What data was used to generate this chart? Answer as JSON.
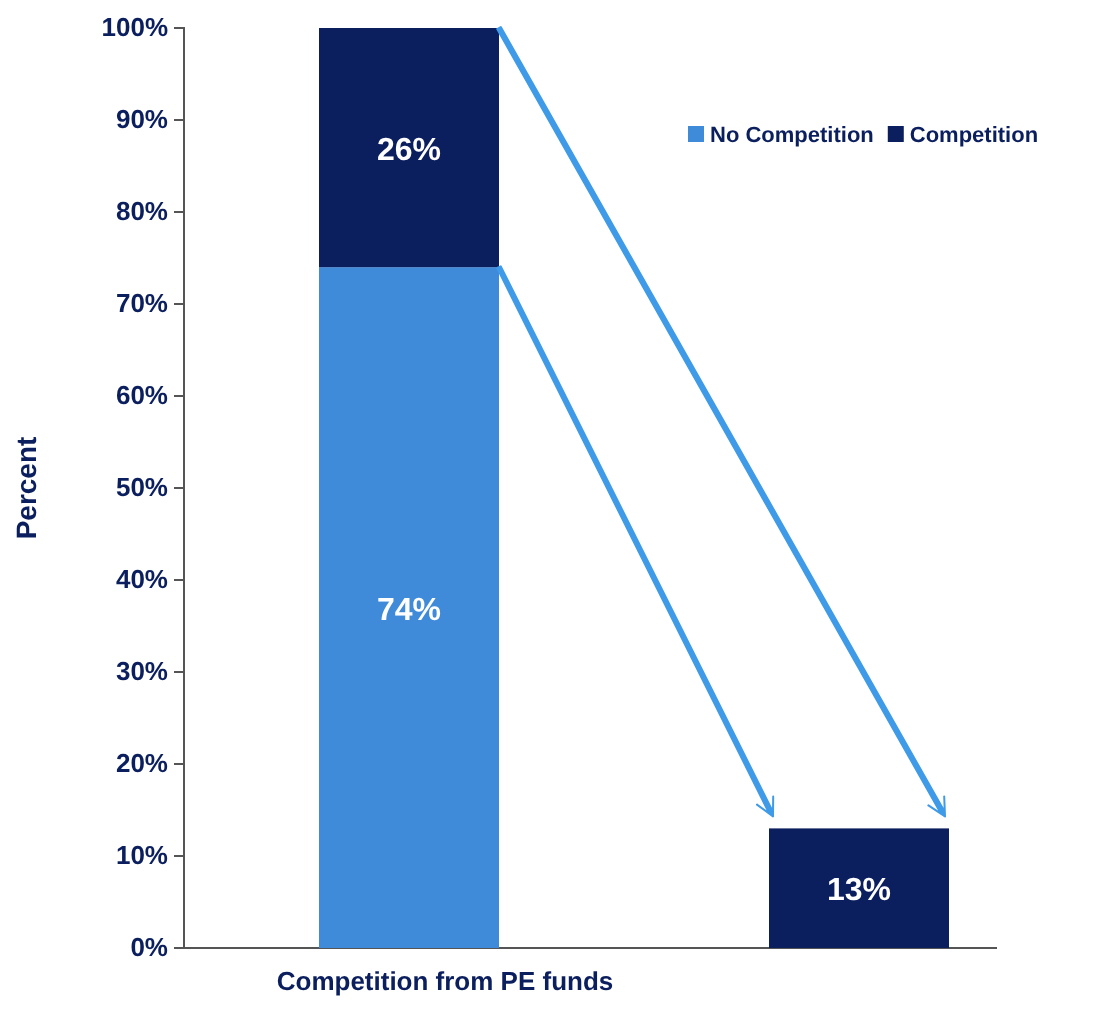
{
  "chart_data": {
    "type": "bar",
    "stacked": true,
    "ylabel": "Percent",
    "categories": [
      "Competition from PE funds",
      null
    ],
    "series": [
      {
        "name": "No Competition",
        "color": "#3f8bd9",
        "values": [
          74,
          null
        ],
        "value_labels": [
          "74%",
          null
        ]
      },
      {
        "name": "Competition",
        "color": "#0b1f5e",
        "values": [
          26,
          13
        ],
        "value_labels": [
          "26%",
          "13%"
        ]
      }
    ],
    "ylim": [
      0,
      100
    ],
    "yticks": [
      {
        "value": 0,
        "label": "0%"
      },
      {
        "value": 10,
        "label": "10%"
      },
      {
        "value": 20,
        "label": "20%"
      },
      {
        "value": 30,
        "label": "30%"
      },
      {
        "value": 40,
        "label": "40%"
      },
      {
        "value": 50,
        "label": "50%"
      },
      {
        "value": 60,
        "label": "60%"
      },
      {
        "value": 70,
        "label": "70%"
      },
      {
        "value": 80,
        "label": "80%"
      },
      {
        "value": 90,
        "label": "90%"
      },
      {
        "value": 100,
        "label": "100%"
      }
    ],
    "legend": "top right",
    "grid": false
  }
}
